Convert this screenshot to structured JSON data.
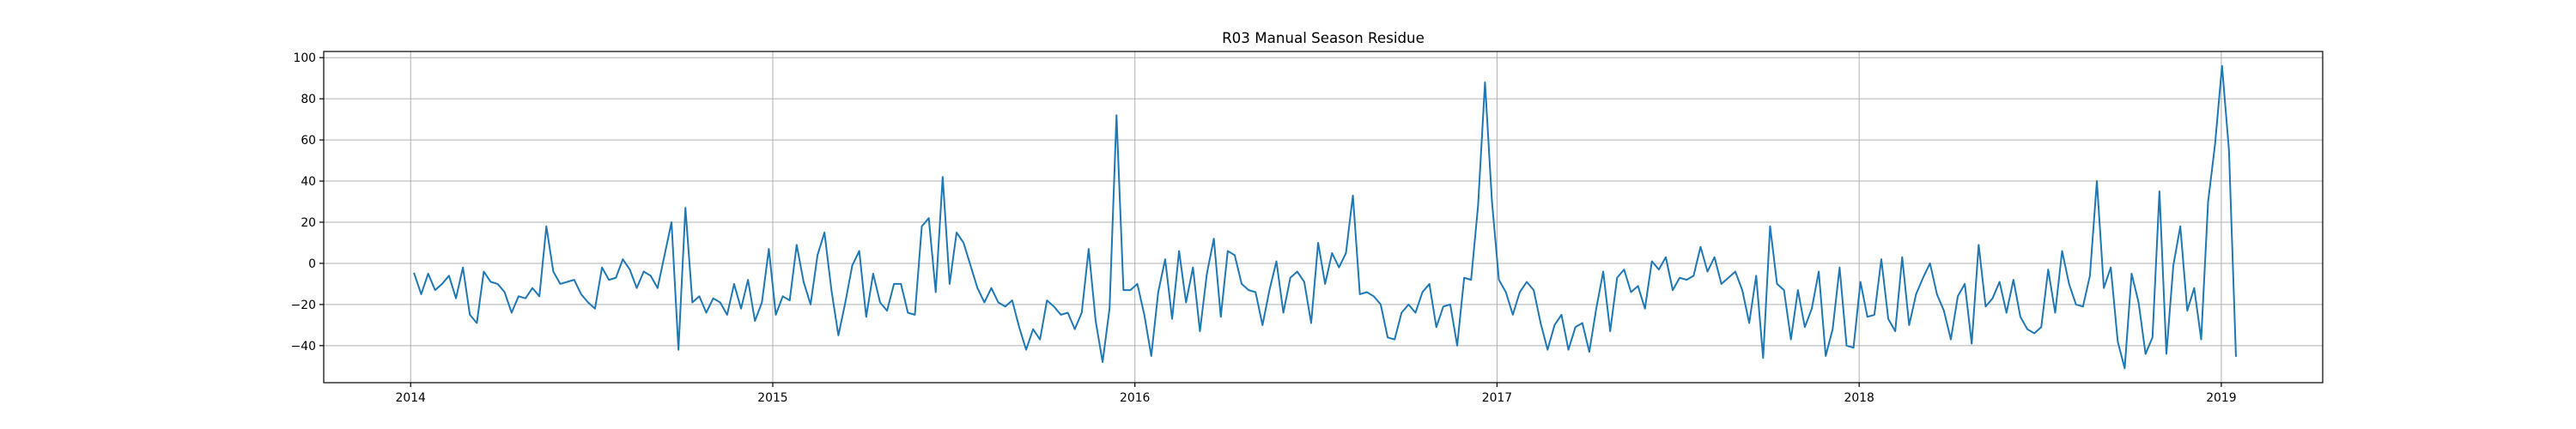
{
  "chart_data": {
    "type": "line",
    "title": "R03 Manual Season Residue",
    "xlabel": "",
    "ylabel": "",
    "grid": true,
    "line_color": "#1f77b4",
    "xlim": [
      2013.76,
      2019.28
    ],
    "ylim": [
      -58,
      103
    ],
    "x_ticks": [
      2014,
      2015,
      2016,
      2017,
      2018,
      2019
    ],
    "x_tick_labels": [
      "2014",
      "2015",
      "2016",
      "2017",
      "2018",
      "2019"
    ],
    "y_ticks": [
      -40,
      -20,
      0,
      20,
      40,
      60,
      80,
      100
    ],
    "y_tick_labels": [
      "−40",
      "−20",
      "0",
      "20",
      "40",
      "60",
      "80",
      "100"
    ],
    "series": [
      {
        "name": "",
        "x_start": 2014.01,
        "x_step": 0.0192,
        "values": [
          -5,
          -15,
          -5,
          -13,
          -10,
          -6,
          -17,
          -2,
          -25,
          -29,
          -4,
          -9,
          -10,
          -14,
          -24,
          -16,
          -17,
          -12,
          -16,
          18,
          -4,
          -10,
          -9,
          -8,
          -15,
          -19,
          -22,
          -2,
          -8,
          -7,
          2,
          -3,
          -12,
          -4,
          -6,
          -12,
          4,
          20,
          -42,
          27,
          -19,
          -16,
          -24,
          -17,
          -19,
          -25,
          -10,
          -22,
          -8,
          -28,
          -19,
          7,
          -25,
          -16,
          -18,
          9,
          -9,
          -20,
          4,
          15,
          -13,
          -35,
          -19,
          -1,
          6,
          -26,
          -5,
          -19,
          -23,
          -10,
          -10,
          -24,
          -25,
          18,
          22,
          -14,
          42,
          -10,
          15,
          10,
          -1,
          -12,
          -19,
          -12,
          -19,
          -21,
          -18,
          -31,
          -42,
          -32,
          -37,
          -18,
          -21,
          -25,
          -24,
          -32,
          -24,
          7,
          -28,
          -48,
          -22,
          72,
          -13,
          -13,
          -10,
          -25,
          -45,
          -14,
          2,
          -27,
          6,
          -19,
          -2,
          -33,
          -5,
          12,
          -26,
          6,
          4,
          -10,
          -13,
          -14,
          -30,
          -13,
          1,
          -24,
          -7,
          -4,
          -9,
          -29,
          10,
          -10,
          5,
          -2,
          5,
          33,
          -15,
          -14,
          -16,
          -20,
          -36,
          -37,
          -24,
          -20,
          -24,
          -14,
          -10,
          -31,
          -21,
          -20,
          -40,
          -7,
          -8,
          28,
          88,
          30,
          -8,
          -14,
          -25,
          -14,
          -9,
          -13,
          -29,
          -42,
          -30,
          -25,
          -42,
          -31,
          -29,
          -43,
          -22,
          -4,
          -33,
          -7,
          -3,
          -14,
          -11,
          -22,
          1,
          -3,
          3,
          -13,
          -7,
          -8,
          -6,
          8,
          -4,
          3,
          -10,
          -7,
          -4,
          -13,
          -29,
          -6,
          -46,
          18,
          -10,
          -13,
          -37,
          -13,
          -31,
          -22,
          -4,
          -45,
          -32,
          -2,
          -40,
          -41,
          -9,
          -26,
          -25,
          2,
          -27,
          -33,
          3,
          -30,
          -15,
          -7,
          0,
          -15,
          -23,
          -37,
          -16,
          -10,
          -39,
          9,
          -21,
          -17,
          -9,
          -24,
          -8,
          -26,
          -32,
          -34,
          -31,
          -3,
          -24,
          6,
          -10,
          -20,
          -21,
          -6,
          40,
          -12,
          -2,
          -38,
          -51,
          -5,
          -19,
          -44,
          -36,
          35,
          -44,
          -1,
          18,
          -23,
          -12,
          -37,
          30,
          58,
          96,
          55,
          -45
        ]
      }
    ]
  }
}
